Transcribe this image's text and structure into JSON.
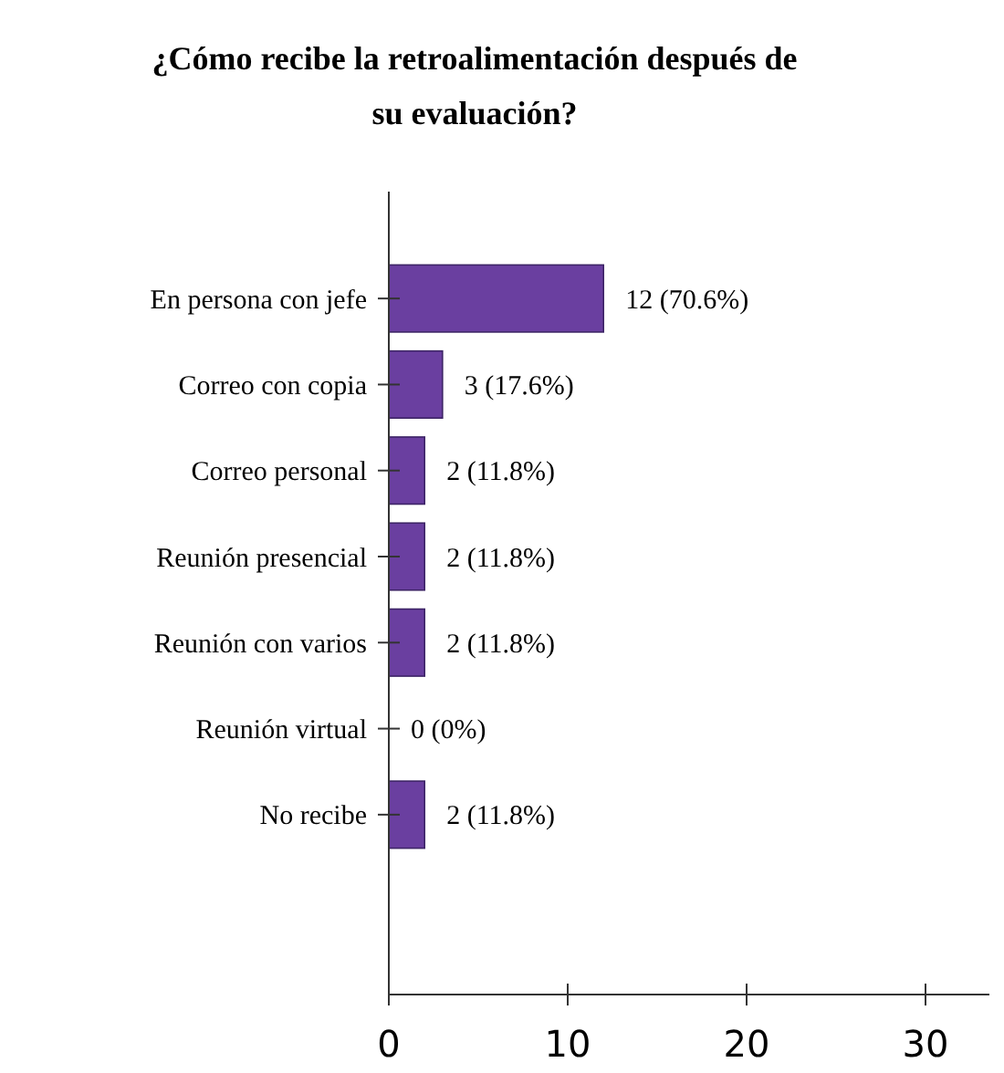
{
  "chart_data": {
    "type": "bar",
    "orientation": "horizontal",
    "title": "¿Cómo recibe la retroalimentación después de su evaluación?",
    "categories": [
      "En persona con jefe",
      "Correo con copia",
      "Correo personal",
      "Reunión presencial",
      "Reunión con varios",
      "Reunión virtual",
      "No recibe"
    ],
    "values": [
      12,
      3,
      2,
      2,
      2,
      0,
      2
    ],
    "value_labels": [
      "12 (70.6%)",
      "3 (17.6%)",
      "2 (11.8%)",
      "2 (11.8%)",
      "2 (11.8%)",
      "0 (0%)",
      "2 (11.8%)"
    ],
    "color": "#6a3fa0",
    "xlim": [
      0,
      35
    ],
    "xticks": [
      0,
      10,
      20,
      30
    ],
    "grid": false
  }
}
